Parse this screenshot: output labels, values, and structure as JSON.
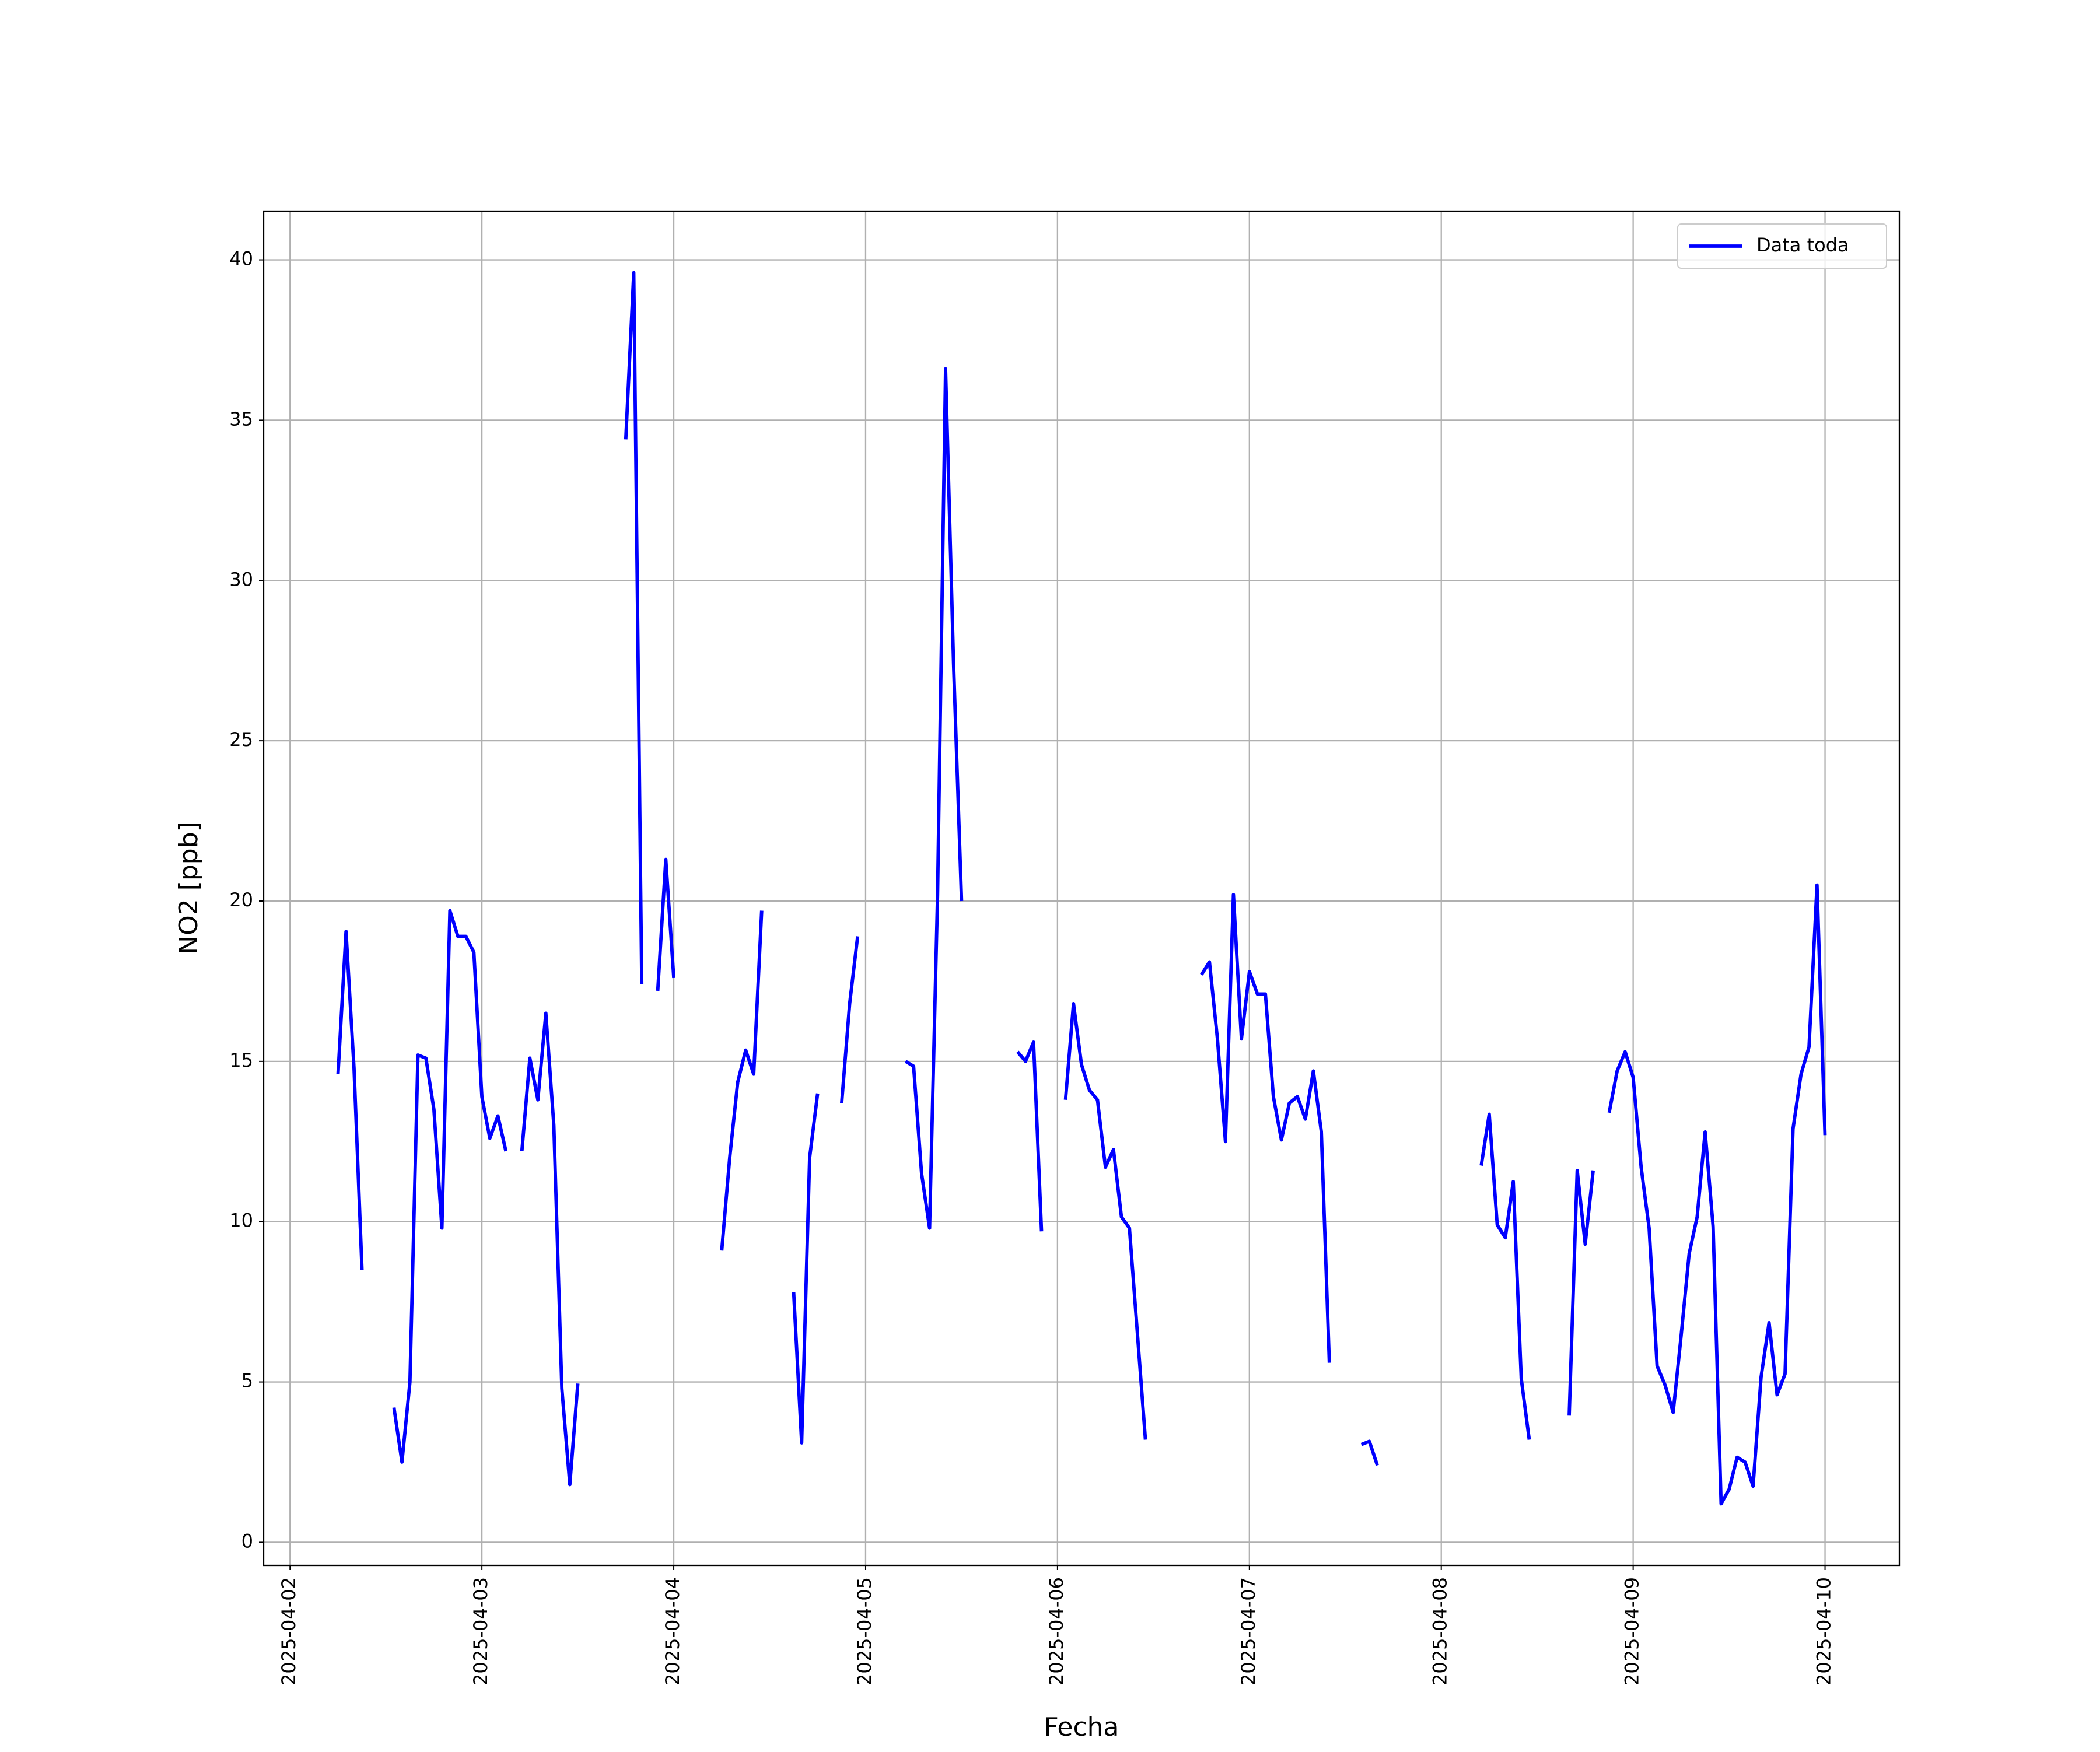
{
  "chart_data": {
    "type": "line",
    "xlabel": "Fecha",
    "ylabel": "NO2 [ppb]",
    "grid": true,
    "legend": "upper right",
    "xlim": [
      "2025-04-01 20:42",
      "2025-04-10 09:18"
    ],
    "ylim": [
      -0.72,
      41.52
    ],
    "yticks": [
      0,
      5,
      10,
      15,
      20,
      25,
      30,
      35,
      40
    ],
    "xticks": [
      "2025-04-02",
      "2025-04-03",
      "2025-04-04",
      "2025-04-05",
      "2025-04-06",
      "2025-04-07",
      "2025-04-08",
      "2025-04-09",
      "2025-04-10"
    ],
    "x": [
      "2025-04-02 06:00",
      "2025-04-02 07:00",
      "2025-04-02 08:00",
      "2025-04-02 09:00",
      "2025-04-02 10:00",
      "2025-04-02 13:00",
      "2025-04-02 14:00",
      "2025-04-02 15:00",
      "2025-04-02 16:00",
      "2025-04-02 17:00",
      "2025-04-02 18:00",
      "2025-04-02 19:00",
      "2025-04-02 20:00",
      "2025-04-02 21:00",
      "2025-04-02 22:00",
      "2025-04-02 23:00",
      "2025-04-03 00:00",
      "2025-04-03 01:00",
      "2025-04-03 02:00",
      "2025-04-03 03:00",
      "2025-04-03 04:00",
      "2025-04-03 05:00",
      "2025-04-03 06:00",
      "2025-04-03 07:00",
      "2025-04-03 08:00",
      "2025-04-03 09:00",
      "2025-04-03 10:00",
      "2025-04-03 11:00",
      "2025-04-03 12:00",
      "2025-04-03 13:00",
      "2025-04-03 18:00",
      "2025-04-03 19:00",
      "2025-04-03 20:00",
      "2025-04-03 21:00",
      "2025-04-03 22:00",
      "2025-04-03 23:00",
      "2025-04-04 00:00",
      "2025-04-04 01:00",
      "2025-04-04 06:00",
      "2025-04-04 07:00",
      "2025-04-04 08:00",
      "2025-04-04 09:00",
      "2025-04-04 10:00",
      "2025-04-04 11:00",
      "2025-04-04 12:00",
      "2025-04-04 15:00",
      "2025-04-04 16:00",
      "2025-04-04 17:00",
      "2025-04-04 18:00",
      "2025-04-04 19:00",
      "2025-04-04 21:00",
      "2025-04-04 22:00",
      "2025-04-04 23:00",
      "2025-04-05 00:00",
      "2025-04-05 05:00",
      "2025-04-05 06:00",
      "2025-04-05 07:00",
      "2025-04-05 08:00",
      "2025-04-05 09:00",
      "2025-04-05 10:00",
      "2025-04-05 11:00",
      "2025-04-05 12:00",
      "2025-04-05 13:00",
      "2025-04-05 19:00",
      "2025-04-05 20:00",
      "2025-04-05 21:00",
      "2025-04-05 22:00",
      "2025-04-05 23:00",
      "2025-04-06 01:00",
      "2025-04-06 02:00",
      "2025-04-06 03:00",
      "2025-04-06 04:00",
      "2025-04-06 05:00",
      "2025-04-06 06:00",
      "2025-04-06 07:00",
      "2025-04-06 08:00",
      "2025-04-06 09:00",
      "2025-04-06 10:00",
      "2025-04-06 11:00",
      "2025-04-06 12:00",
      "2025-04-06 18:00",
      "2025-04-06 19:00",
      "2025-04-06 20:00",
      "2025-04-06 21:00",
      "2025-04-06 22:00",
      "2025-04-06 23:00",
      "2025-04-07 00:00",
      "2025-04-07 01:00",
      "2025-04-07 02:00",
      "2025-04-07 03:00",
      "2025-04-07 04:00",
      "2025-04-07 05:00",
      "2025-04-07 06:00",
      "2025-04-07 07:00",
      "2025-04-07 08:00",
      "2025-04-07 09:00",
      "2025-04-07 10:00",
      "2025-04-07 11:00",
      "2025-04-07 14:00",
      "2025-04-07 15:00",
      "2025-04-07 16:00",
      "2025-04-07 17:00",
      "2025-04-08 05:00",
      "2025-04-08 06:00",
      "2025-04-08 07:00",
      "2025-04-08 08:00",
      "2025-04-08 09:00",
      "2025-04-08 10:00",
      "2025-04-08 11:00",
      "2025-04-08 12:00",
      "2025-04-08 16:00",
      "2025-04-08 17:00",
      "2025-04-08 18:00",
      "2025-04-08 19:00",
      "2025-04-08 20:00",
      "2025-04-08 21:00",
      "2025-04-08 22:00",
      "2025-04-08 23:00",
      "2025-04-09 00:00",
      "2025-04-09 01:00",
      "2025-04-09 02:00",
      "2025-04-09 03:00",
      "2025-04-09 04:00",
      "2025-04-09 05:00",
      "2025-04-09 06:00",
      "2025-04-09 07:00",
      "2025-04-09 08:00",
      "2025-04-09 09:00",
      "2025-04-09 10:00",
      "2025-04-09 11:00",
      "2025-04-09 12:00",
      "2025-04-09 13:00",
      "2025-04-09 14:00",
      "2025-04-09 15:00",
      "2025-04-09 16:00",
      "2025-04-09 17:00",
      "2025-04-09 18:00",
      "2025-04-09 19:00",
      "2025-04-09 20:00",
      "2025-04-09 21:00",
      "2025-04-09 22:00",
      "2025-04-09 23:00",
      "2025-04-10 00:00"
    ],
    "series": [
      {
        "name": "Data toda",
        "color": "#0000ff",
        "values": [
          14.6,
          19.05,
          14.8,
          8.5,
          null,
          4.2,
          2.5,
          5.0,
          15.2,
          15.1,
          13.5,
          9.8,
          19.7,
          18.9,
          18.9,
          18.4,
          13.9,
          12.6,
          13.3,
          12.2,
          null,
          12.2,
          15.1,
          13.8,
          16.5,
          13.0,
          4.8,
          1.8,
          4.95,
          null,
          34.4,
          39.6,
          17.4,
          null,
          17.2,
          21.3,
          17.6,
          null,
          9.1,
          12.0,
          14.35,
          15.35,
          14.6,
          19.7,
          null,
          7.8,
          3.1,
          12.0,
          14.0,
          null,
          13.7,
          16.8,
          18.9,
          null,
          15.0,
          14.85,
          11.5,
          9.8,
          20.2,
          36.6,
          27.4,
          20.0,
          null,
          15.3,
          15.0,
          15.6,
          9.7,
          null,
          13.8,
          16.8,
          14.9,
          14.1,
          13.8,
          11.7,
          12.25,
          10.15,
          9.8,
          6.5,
          3.2,
          null,
          17.7,
          18.1,
          15.7,
          12.5,
          20.2,
          15.7,
          17.8,
          17.1,
          17.1,
          13.9,
          12.55,
          13.7,
          13.9,
          13.2,
          14.7,
          12.8,
          5.6,
          null,
          3.05,
          3.15,
          2.4,
          null,
          11.75,
          13.35,
          9.9,
          9.5,
          11.25,
          5.1,
          3.2,
          null,
          3.95,
          11.6,
          9.3,
          11.6,
          null,
          13.4,
          14.7,
          15.3,
          14.5,
          11.7,
          9.8,
          5.5,
          4.9,
          4.05,
          6.45,
          9.0,
          10.15,
          12.8,
          9.85,
          1.2,
          1.65,
          2.65,
          2.5,
          1.75,
          5.15,
          6.85,
          4.6,
          5.25,
          12.9,
          14.6,
          15.45,
          20.5,
          12.7
        ]
      }
    ]
  }
}
